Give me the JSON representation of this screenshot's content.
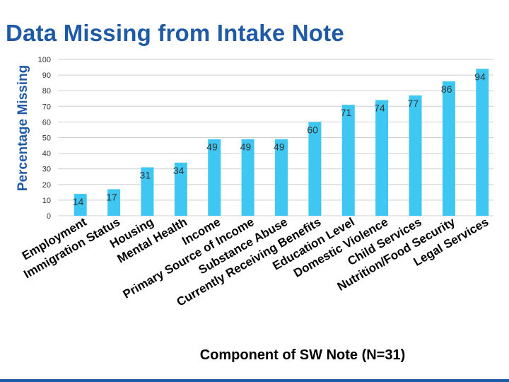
{
  "slide": {
    "title": "Data Missing from Intake Note"
  },
  "chart_data": {
    "type": "bar",
    "title": "Data Missing from Intake Note",
    "xlabel": "Component of SW Note (N=31)",
    "ylabel": "Percentage Missing",
    "ylim": [
      0,
      100
    ],
    "yticks": [
      0,
      10,
      20,
      30,
      40,
      50,
      60,
      70,
      80,
      90,
      100
    ],
    "grid": true,
    "legend": "none",
    "bar_color": "#3fc7f4",
    "categories": [
      "Employment",
      "Immigration Status",
      "Housing",
      "Mental Health",
      "Income",
      "Primary Source of Income",
      "Substance Abuse",
      "Currently Receiving Benefits",
      "Education Level",
      "Domestic Violence",
      "Child Services",
      "Nutrition/Food Security",
      "Legal Services"
    ],
    "values": [
      14,
      17,
      31,
      34,
      49,
      49,
      49,
      60,
      71,
      74,
      77,
      86,
      94
    ],
    "data_labels": [
      "14",
      "17",
      "31",
      "34",
      "49",
      "49",
      "49",
      "60",
      "71",
      "74",
      "77",
      "86",
      "94"
    ]
  }
}
